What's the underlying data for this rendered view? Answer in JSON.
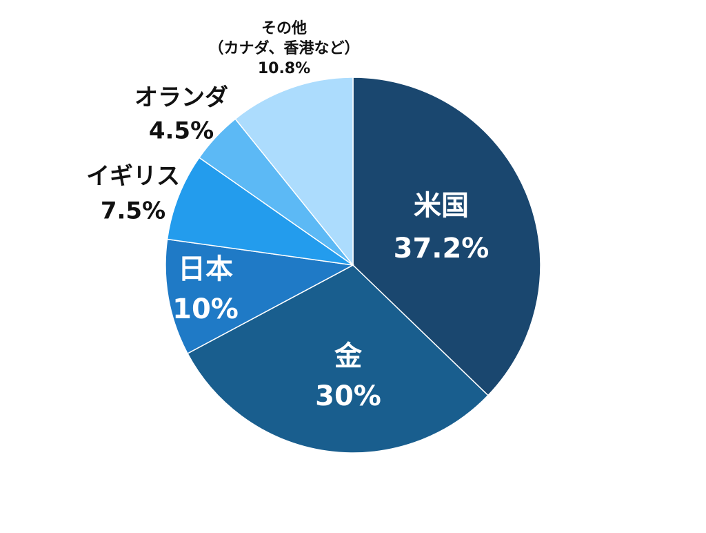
{
  "chart_data": {
    "type": "pie",
    "title": "",
    "start_angle_deg": 0,
    "direction": "clockwise",
    "slices": [
      {
        "label": "米国",
        "value": 37.2,
        "value_label": "37.2%",
        "color": "#1a476f",
        "label_position": "inside"
      },
      {
        "label": "金",
        "value": 30,
        "value_label": "30%",
        "color": "#195e8e",
        "label_position": "inside"
      },
      {
        "label": "日本",
        "value": 10,
        "value_label": "10%",
        "color": "#1f7ac6",
        "label_position": "inside"
      },
      {
        "label": "イギリス",
        "value": 7.5,
        "value_label": "7.5%",
        "color": "#239ced",
        "label_position": "outside"
      },
      {
        "label": "オランダ",
        "value": 4.5,
        "value_label": "4.5%",
        "color": "#5cb9f5",
        "label_position": "outside"
      },
      {
        "label": "その他",
        "sublabel": "（カナダ、香港など）",
        "value": 10.8,
        "value_label": "10.8%",
        "color": "#acdcfd",
        "label_position": "outside"
      }
    ]
  }
}
